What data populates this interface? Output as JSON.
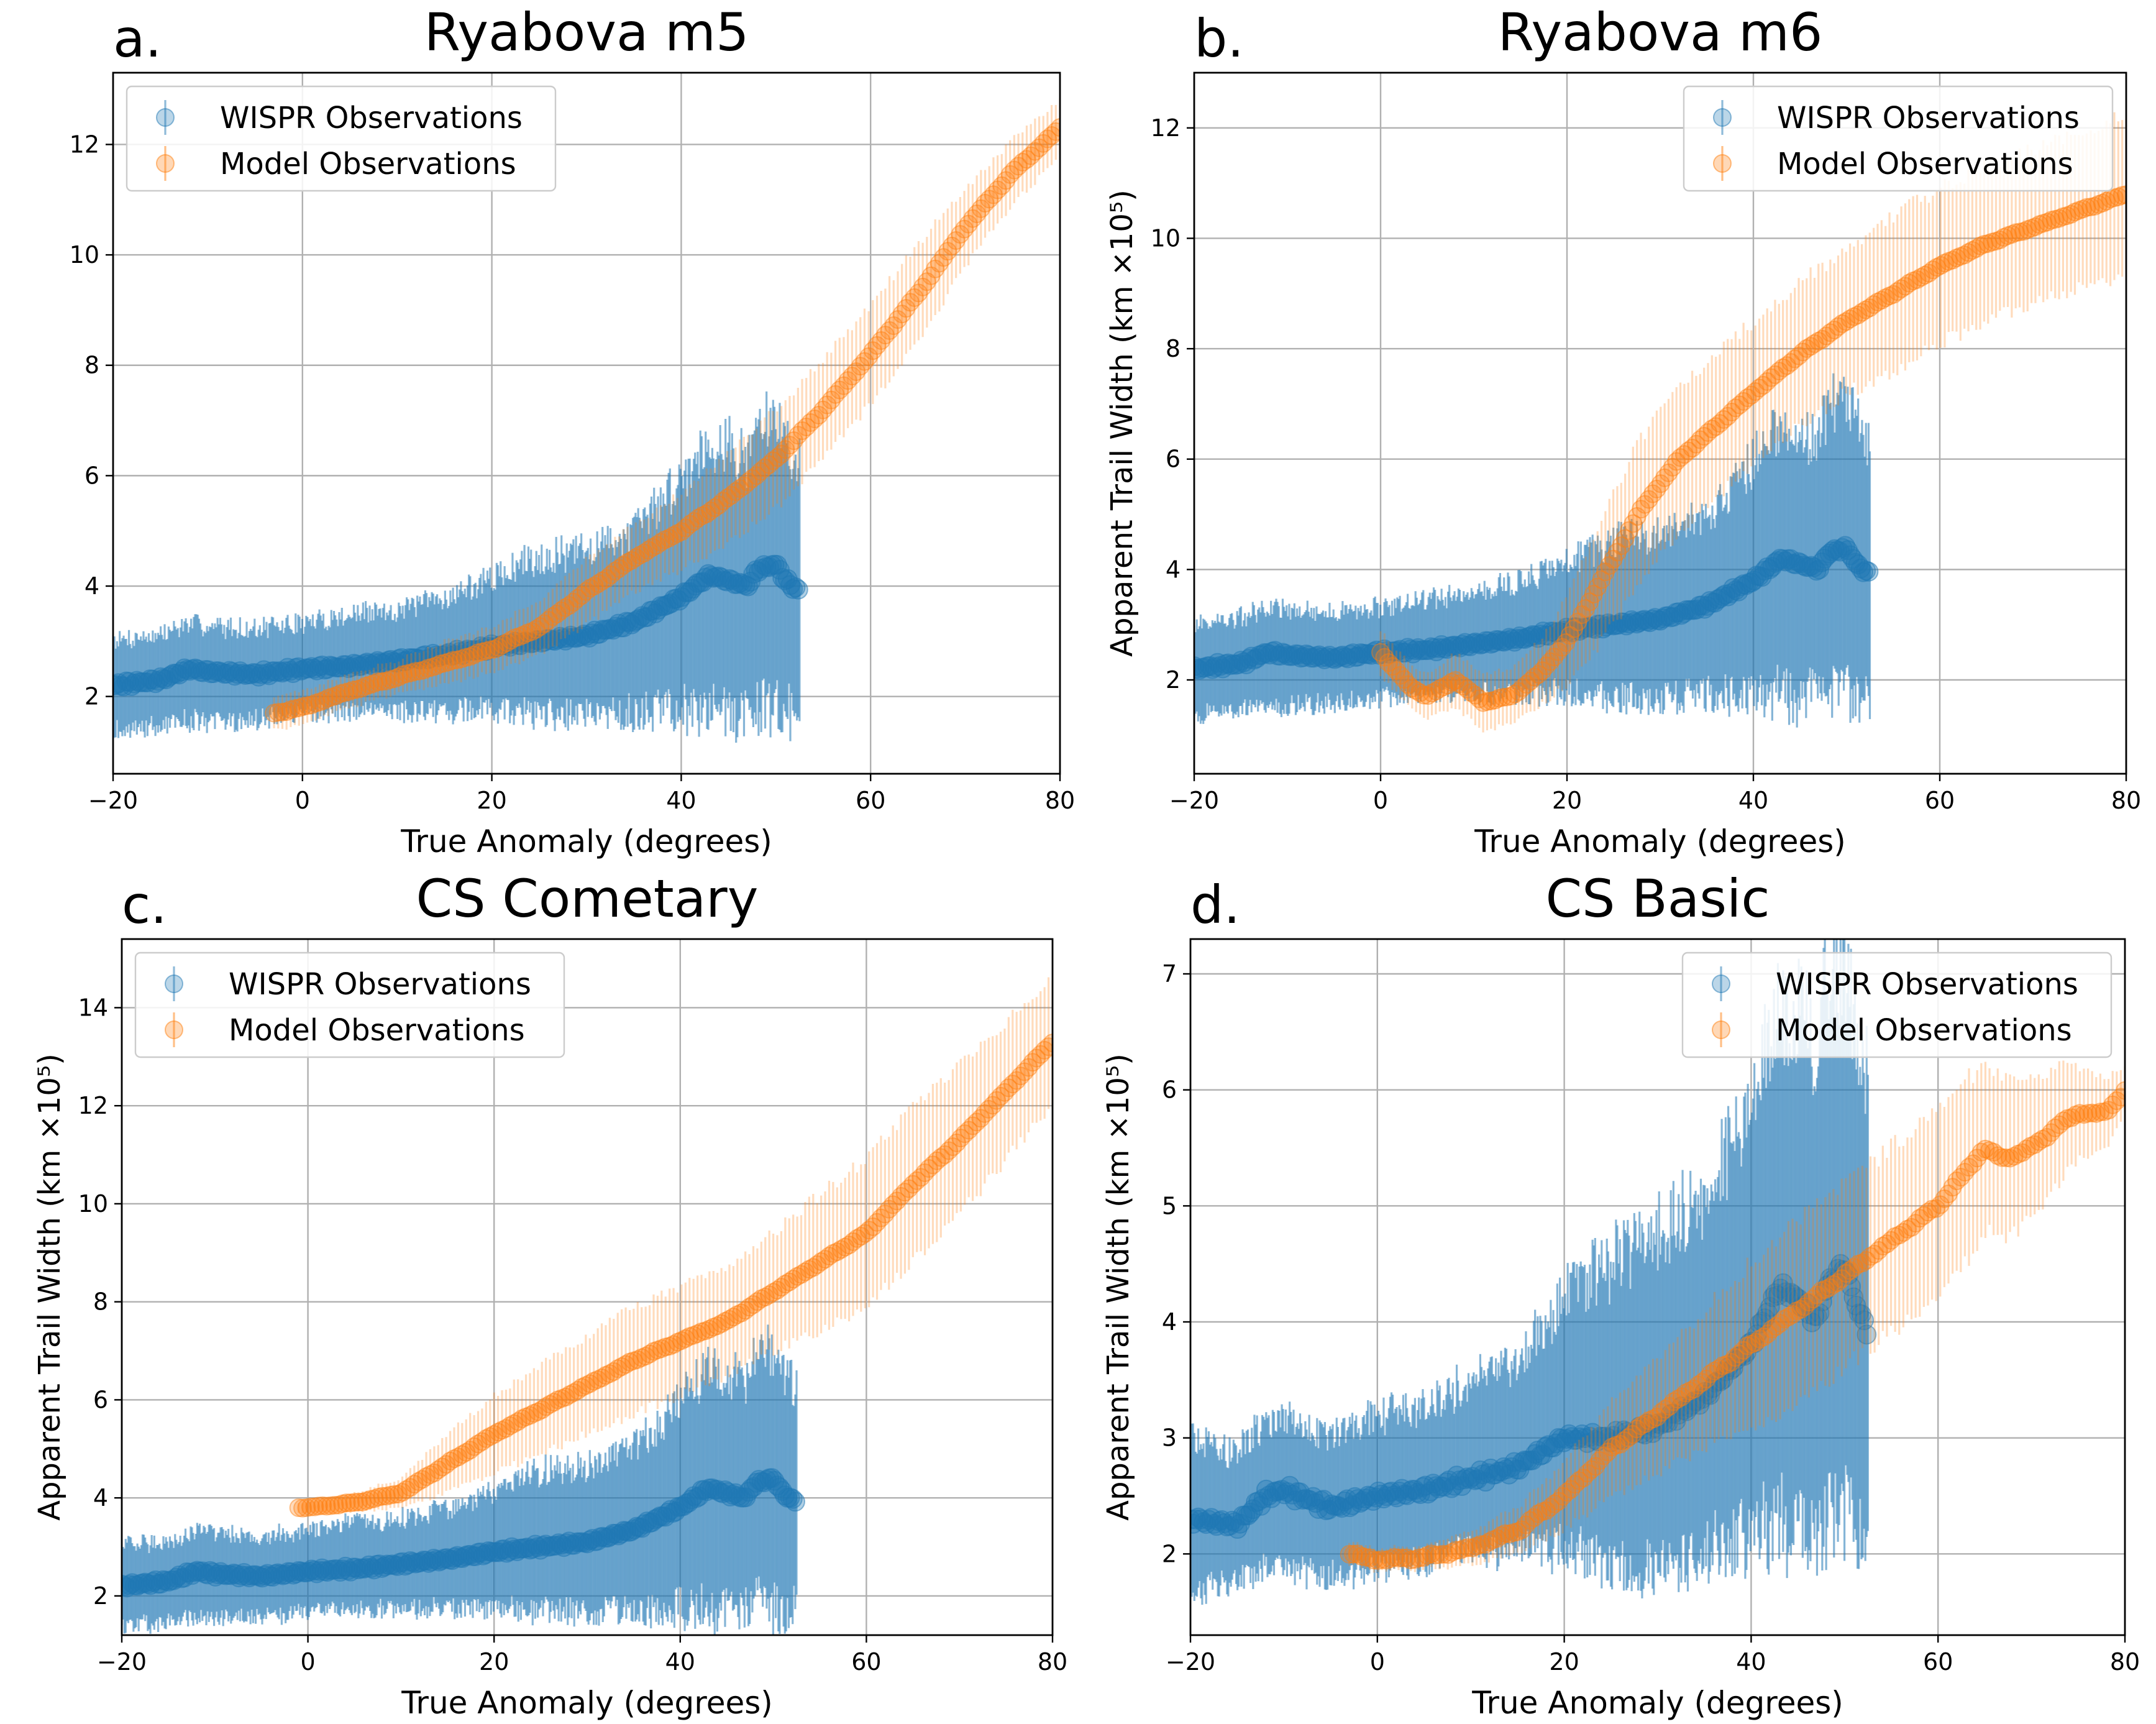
{
  "figure": {
    "background": "#ffffff"
  },
  "series_styles": {
    "wispr": {
      "color": "#1f77b4",
      "legend": "WISPR Observations"
    },
    "model": {
      "color": "#ff7f0e",
      "legend": "Model Observations"
    }
  },
  "chart_data": [
    {
      "type": "scatter",
      "panel_label": "a.",
      "title": "Ryabova m5",
      "xlabel": "True Anomaly (degrees)",
      "ylabel": "",
      "xlim": [
        -20,
        80
      ],
      "ylim": [
        0.6,
        13.3
      ],
      "xticks": [
        -20,
        0,
        20,
        40,
        60,
        80
      ],
      "xtick_labels": [
        "−20",
        "0",
        "20",
        "40",
        "60",
        "80"
      ],
      "yticks": [
        2,
        4,
        6,
        8,
        10,
        12
      ],
      "ytick_labels": [
        "2",
        "4",
        "6",
        "8",
        "10",
        "12"
      ],
      "grid": true,
      "legend_position": "upper-left",
      "series": [
        {
          "name": "WISPR Observations",
          "x": [
            -20,
            -15,
            -12,
            -10,
            -5,
            0,
            5,
            10,
            15,
            20,
            25,
            30,
            35,
            40,
            43,
            45,
            47,
            48,
            50,
            51,
            52.5
          ],
          "y": [
            2.2,
            2.3,
            2.5,
            2.45,
            2.4,
            2.5,
            2.55,
            2.65,
            2.75,
            2.9,
            3.0,
            3.1,
            3.35,
            3.8,
            4.2,
            4.1,
            4.0,
            4.3,
            4.4,
            4.1,
            3.9
          ],
          "err_low": [
            0.8,
            0.8,
            0.9,
            0.9,
            0.8,
            0.8,
            0.8,
            0.9,
            1.0,
            1.1,
            1.3,
            1.4,
            1.6,
            2.0,
            2.4,
            2.4,
            2.2,
            2.4,
            2.6,
            2.3,
            2.2
          ],
          "err_high": [
            0.8,
            0.8,
            0.8,
            0.8,
            0.8,
            0.8,
            0.9,
            0.9,
            1.0,
            1.2,
            1.5,
            1.5,
            1.6,
            2.1,
            2.4,
            2.4,
            2.2,
            2.6,
            2.5,
            2.5,
            2.2
          ]
        },
        {
          "name": "Model Observations",
          "x": [
            -3,
            0,
            5,
            10,
            15,
            20,
            25,
            30,
            35,
            40,
            45,
            50,
            55,
            60,
            65,
            70,
            75,
            80
          ],
          "y": [
            1.7,
            1.8,
            2.1,
            2.35,
            2.6,
            2.85,
            3.25,
            3.9,
            4.5,
            5.0,
            5.6,
            6.3,
            7.2,
            8.2,
            9.3,
            10.5,
            11.5,
            12.3
          ],
          "err": [
            0.3,
            0.3,
            0.3,
            0.3,
            0.4,
            0.4,
            0.5,
            0.6,
            0.6,
            0.7,
            0.8,
            0.9,
            0.9,
            0.9,
            0.9,
            0.7,
            0.6,
            0.5
          ]
        }
      ]
    },
    {
      "type": "scatter",
      "panel_label": "b.",
      "title": "Ryabova m6",
      "xlabel": "True Anomaly (degrees)",
      "ylabel": "Apparent Trail Width (km ×10⁵)",
      "xlim": [
        -20,
        80
      ],
      "ylim": [
        0.3,
        13.0
      ],
      "xticks": [
        -20,
        0,
        20,
        40,
        60,
        80
      ],
      "xtick_labels": [
        "−20",
        "0",
        "20",
        "40",
        "60",
        "80"
      ],
      "yticks": [
        2,
        4,
        6,
        8,
        10,
        12
      ],
      "ytick_labels": [
        "2",
        "4",
        "6",
        "8",
        "10",
        "12"
      ],
      "grid": true,
      "legend_position": "upper-right",
      "series": [
        {
          "name": "WISPR Observations",
          "x": [
            -20,
            -15,
            -12,
            -10,
            -5,
            0,
            5,
            10,
            15,
            20,
            25,
            30,
            35,
            40,
            43,
            45,
            47,
            48,
            50,
            51,
            52.5
          ],
          "y": [
            2.2,
            2.3,
            2.5,
            2.45,
            2.4,
            2.5,
            2.55,
            2.65,
            2.75,
            2.9,
            3.0,
            3.1,
            3.35,
            3.8,
            4.2,
            4.1,
            4.0,
            4.3,
            4.4,
            4.1,
            3.9
          ],
          "err_low": [
            0.8,
            0.8,
            0.9,
            0.9,
            0.8,
            0.8,
            0.8,
            0.9,
            1.0,
            1.1,
            1.3,
            1.4,
            1.6,
            2.0,
            2.4,
            2.4,
            2.2,
            2.4,
            2.6,
            2.3,
            2.2
          ],
          "err_high": [
            0.8,
            0.8,
            0.8,
            0.8,
            0.8,
            0.8,
            0.9,
            0.9,
            1.0,
            1.2,
            1.5,
            1.5,
            1.6,
            2.1,
            2.4,
            2.4,
            2.2,
            2.6,
            2.5,
            2.5,
            2.2
          ]
        },
        {
          "name": "Model Observations",
          "x": [
            0,
            3,
            5,
            8,
            11,
            14,
            17,
            20,
            22,
            25,
            28,
            32,
            36,
            40,
            45,
            50,
            55,
            60,
            65,
            70,
            75,
            80
          ],
          "y": [
            2.5,
            1.9,
            1.7,
            2.0,
            1.6,
            1.7,
            2.1,
            2.7,
            3.3,
            4.2,
            5.1,
            6.0,
            6.6,
            7.2,
            7.9,
            8.5,
            9.0,
            9.5,
            9.9,
            10.2,
            10.5,
            10.8
          ],
          "err": [
            0.4,
            0.4,
            0.4,
            0.5,
            0.5,
            0.5,
            0.6,
            0.8,
            1.0,
            1.2,
            1.3,
            1.3,
            1.3,
            1.3,
            1.3,
            1.3,
            1.4,
            1.4,
            1.4,
            1.4,
            1.4,
            1.5
          ]
        }
      ]
    },
    {
      "type": "scatter",
      "panel_label": "c.",
      "title": "CS Cometary",
      "xlabel": "True Anomaly (degrees)",
      "ylabel": "Apparent Trail Width (km ×10⁵)",
      "xlim": [
        -20,
        80
      ],
      "ylim": [
        1.2,
        15.4
      ],
      "xticks": [
        -20,
        0,
        20,
        40,
        60,
        80
      ],
      "xtick_labels": [
        "−20",
        "0",
        "20",
        "40",
        "60",
        "80"
      ],
      "yticks": [
        2,
        4,
        6,
        8,
        10,
        12,
        14
      ],
      "ytick_labels": [
        "2",
        "4",
        "6",
        "8",
        "10",
        "12",
        "14"
      ],
      "grid": true,
      "legend_position": "upper-left",
      "series": [
        {
          "name": "WISPR Observations",
          "x": [
            -20,
            -15,
            -12,
            -10,
            -5,
            0,
            5,
            10,
            15,
            20,
            25,
            30,
            35,
            40,
            43,
            45,
            47,
            48,
            50,
            51,
            52.5
          ],
          "y": [
            2.2,
            2.3,
            2.5,
            2.45,
            2.4,
            2.5,
            2.55,
            2.65,
            2.75,
            2.9,
            3.0,
            3.1,
            3.35,
            3.8,
            4.2,
            4.1,
            4.0,
            4.3,
            4.4,
            4.1,
            3.9
          ],
          "err_low": [
            0.8,
            0.8,
            0.9,
            0.9,
            0.8,
            0.8,
            0.8,
            0.9,
            1.0,
            1.1,
            1.3,
            1.4,
            1.6,
            2.0,
            2.4,
            2.4,
            2.2,
            2.4,
            2.6,
            2.3,
            2.2
          ],
          "err_high": [
            0.8,
            0.8,
            0.8,
            0.8,
            0.8,
            0.8,
            0.9,
            0.9,
            1.0,
            1.2,
            1.5,
            1.5,
            1.6,
            2.1,
            2.4,
            2.4,
            2.2,
            2.6,
            2.5,
            2.5,
            2.2
          ]
        },
        {
          "name": "Model Observations",
          "x": [
            -1,
            0,
            5,
            10,
            15,
            20,
            25,
            30,
            35,
            40,
            45,
            50,
            55,
            60,
            65,
            70,
            75,
            80
          ],
          "y": [
            3.8,
            3.8,
            3.9,
            4.1,
            4.7,
            5.3,
            5.8,
            6.3,
            6.8,
            7.2,
            7.6,
            8.2,
            8.8,
            9.4,
            10.4,
            11.3,
            12.3,
            13.3
          ],
          "err": [
            0.1,
            0.1,
            0.2,
            0.3,
            0.6,
            0.8,
            0.9,
            1.0,
            1.1,
            1.1,
            1.1,
            1.2,
            1.4,
            1.5,
            1.6,
            1.5,
            1.4,
            1.3
          ]
        }
      ]
    },
    {
      "type": "scatter",
      "panel_label": "d.",
      "title": "CS Basic",
      "xlabel": "True Anomaly (degrees)",
      "ylabel": "Apparent Trail Width (km ×10⁵)",
      "xlim": [
        -20,
        80
      ],
      "ylim": [
        1.3,
        7.3
      ],
      "xticks": [
        -20,
        0,
        20,
        40,
        60,
        80
      ],
      "xtick_labels": [
        "−20",
        "0",
        "20",
        "40",
        "60",
        "80"
      ],
      "yticks": [
        2,
        3,
        4,
        5,
        6,
        7
      ],
      "ytick_labels": [
        "2",
        "3",
        "4",
        "5",
        "6",
        "7"
      ],
      "grid": true,
      "legend_position": "upper-right",
      "series": [
        {
          "name": "WISPR Observations",
          "x": [
            -20,
            -15,
            -12,
            -10,
            -5,
            0,
            5,
            10,
            15,
            20,
            25,
            30,
            35,
            40,
            43,
            45,
            47,
            48,
            50,
            51,
            52.5
          ],
          "y": [
            2.3,
            2.25,
            2.5,
            2.55,
            2.4,
            2.5,
            2.55,
            2.65,
            2.75,
            3.0,
            3.0,
            3.1,
            3.35,
            3.8,
            4.3,
            4.2,
            4.0,
            4.3,
            4.5,
            4.2,
            3.9
          ],
          "err_low": [
            0.6,
            0.5,
            0.6,
            0.6,
            0.6,
            0.6,
            0.6,
            0.6,
            0.7,
            0.9,
            1.1,
            1.2,
            1.3,
            1.6,
            2.0,
            2.0,
            1.8,
            2.0,
            2.1,
            1.9,
            1.8
          ],
          "err_high": [
            0.7,
            0.6,
            0.6,
            0.6,
            0.6,
            0.7,
            0.7,
            0.8,
            0.9,
            1.2,
            1.5,
            1.6,
            1.7,
            2.0,
            2.4,
            2.4,
            2.2,
            2.5,
            2.5,
            2.3,
            2.2
          ]
        },
        {
          "name": "Model Observations",
          "x": [
            -3,
            0,
            5,
            10,
            15,
            20,
            25,
            30,
            35,
            40,
            45,
            50,
            55,
            60,
            63,
            65,
            67,
            70,
            73,
            75,
            78,
            80
          ],
          "y": [
            2.0,
            1.95,
            1.97,
            2.05,
            2.2,
            2.5,
            2.9,
            3.2,
            3.5,
            3.8,
            4.1,
            4.4,
            4.7,
            5.0,
            5.3,
            5.5,
            5.4,
            5.5,
            5.7,
            5.8,
            5.8,
            6.0
          ],
          "err": [
            0.1,
            0.1,
            0.1,
            0.15,
            0.2,
            0.3,
            0.4,
            0.5,
            0.6,
            0.7,
            0.8,
            0.8,
            0.8,
            0.8,
            0.8,
            0.7,
            0.7,
            0.6,
            0.5,
            0.4,
            0.3,
            0.2
          ]
        }
      ]
    }
  ]
}
